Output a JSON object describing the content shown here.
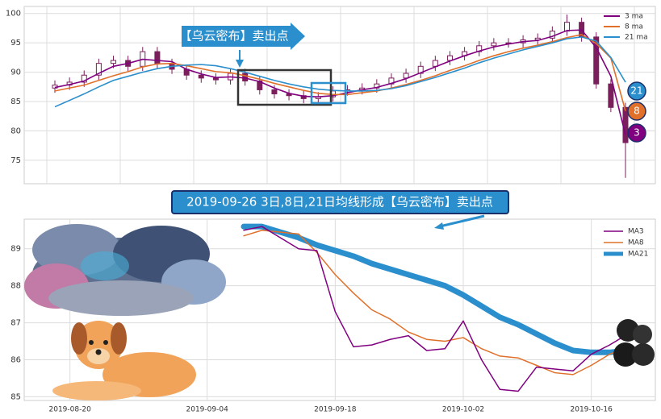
{
  "chart_data": [
    {
      "type": "candlestick",
      "annotation": "【乌云密布】卖出点",
      "candle_color": "#7a1f5c",
      "ylim": [
        71,
        101.2
      ],
      "yticks": [
        75,
        80,
        85,
        90,
        95,
        100
      ],
      "grid": true,
      "open": [
        87.3,
        87.8,
        88.3,
        89.5,
        91.5,
        92,
        91,
        93.5,
        91.5,
        90.5,
        89.5,
        89,
        88.7,
        89.8,
        88.5,
        87,
        86.3,
        86,
        85.5,
        85.8,
        86.8,
        87,
        87.3,
        88,
        89,
        89.8,
        91,
        92,
        92.8,
        93.5,
        94.5,
        95,
        95,
        95.5,
        95.8,
        97,
        98.5,
        96,
        88,
        84
      ],
      "high": [
        88.6,
        89.1,
        90.3,
        92.3,
        92.8,
        92.8,
        94.3,
        94.3,
        92.3,
        91.3,
        90.3,
        89.8,
        90.6,
        90.6,
        89.3,
        87.8,
        87.1,
        86.8,
        86.6,
        87.6,
        87.8,
        88.1,
        88.8,
        89.8,
        90.6,
        91.8,
        92.8,
        93.6,
        94.3,
        95.3,
        95.8,
        95.8,
        96.3,
        96.6,
        97.8,
        99.8,
        99.3,
        96.8,
        88.8,
        84.8
      ],
      "low": [
        86.5,
        87.0,
        87.5,
        88.7,
        90.7,
        90.2,
        90.2,
        90.7,
        89.7,
        88.7,
        88.2,
        87.9,
        87.9,
        87.7,
        86.2,
        85.5,
        85.2,
        84.7,
        84.7,
        85.0,
        86.0,
        86.2,
        86.5,
        87.2,
        88.2,
        89.0,
        90.2,
        91.2,
        92.0,
        92.7,
        93.7,
        94.2,
        94.2,
        94.7,
        95.0,
        96.2,
        95.2,
        87.2,
        83.2,
        72.0
      ],
      "close": [
        87.8,
        88.3,
        89.5,
        91.5,
        92,
        91,
        93.5,
        91.5,
        90.5,
        89.5,
        89,
        88.7,
        89.8,
        88.5,
        87,
        86.3,
        86,
        85.5,
        85.8,
        86.8,
        87,
        87.3,
        88,
        89,
        89.8,
        91,
        92,
        92.8,
        93.5,
        94.5,
        95,
        95,
        95.5,
        95.8,
        97,
        98.5,
        96,
        88,
        84,
        78
      ],
      "series": [
        {
          "name": "3 ma",
          "color": "#800080",
          "end_label": "3",
          "values": [
            87.4,
            87.9,
            88.5,
            89.8,
            91,
            91.5,
            92.2,
            92,
            91.8,
            90.5,
            89.7,
            89.1,
            89.2,
            89,
            88.4,
            87.3,
            86.4,
            85.9,
            85.8,
            86,
            86.5,
            87,
            87.4,
            88.1,
            88.9,
            89.9,
            90.9,
            91.9,
            92.8,
            93.6,
            94.3,
            94.8,
            95.2,
            95.4,
            96.1,
            97.1,
            97.2,
            94.2,
            89.3,
            79.3
          ]
        },
        {
          "name": "8 ma",
          "color": "#e0702a",
          "end_label": "8",
          "values": [
            86.8,
            87.3,
            87.8,
            88.6,
            89.4,
            90.1,
            90.9,
            91.4,
            91.5,
            91.1,
            90.6,
            90.1,
            89.9,
            89.4,
            88.8,
            88.1,
            87.5,
            86.9,
            86.4,
            86.2,
            86.2,
            86.5,
            86.8,
            87.3,
            87.9,
            88.6,
            89.4,
            90.3,
            91.1,
            92,
            92.8,
            93.5,
            94.1,
            94.6,
            95.2,
            95.9,
            96.4,
            94.9,
            92.4,
            83.4
          ]
        },
        {
          "name": "21 ma",
          "color": "#2a8fcc",
          "end_label": "21",
          "values": [
            84.1,
            85.2,
            86.3,
            87.5,
            88.6,
            89.3,
            90,
            90.6,
            91,
            91.2,
            91.3,
            91.1,
            90.6,
            90,
            89.3,
            88.6,
            88,
            87.5,
            87.1,
            86.9,
            86.8,
            86.8,
            86.9,
            87.2,
            87.7,
            88.4,
            89.1,
            89.9,
            90.7,
            91.6,
            92.4,
            93.1,
            93.8,
            94.4,
            95,
            95.7,
            96,
            95.3,
            92.5,
            88.3
          ]
        }
      ]
    },
    {
      "type": "line",
      "title": "2019-09-26 3日,8日,21日均线形成【乌云密布】卖出点",
      "x": [
        "2019-09-08",
        "2019-09-10",
        "2019-09-12",
        "2019-09-14",
        "2019-09-16",
        "2019-09-18",
        "2019-09-20",
        "2019-09-22",
        "2019-09-24",
        "2019-09-26",
        "2019-09-28",
        "2019-09-30",
        "2019-10-02",
        "2019-10-04",
        "2019-10-06",
        "2019-10-08",
        "2019-10-10",
        "2019-10-12",
        "2019-10-14",
        "2019-10-16",
        "2019-10-18",
        "2019-10-20"
      ],
      "xlim": [
        "2019-08-15",
        "2019-10-23"
      ],
      "xticks": [
        "2019-08-20",
        "2019-09-04",
        "2019-09-18",
        "2019-10-02",
        "2019-10-16"
      ],
      "ylim": [
        84.9,
        89.8
      ],
      "yticks": [
        85,
        86,
        87,
        88,
        89
      ],
      "grid": true,
      "series": [
        {
          "name": "MA3",
          "color": "#800080",
          "width": 1.5,
          "values": [
            89.5,
            89.6,
            89.3,
            89.0,
            88.95,
            87.3,
            86.35,
            86.4,
            86.55,
            86.65,
            86.25,
            86.3,
            87.05,
            86.0,
            85.2,
            85.15,
            85.8,
            85.75,
            85.7,
            86.15,
            86.4,
            86.7
          ]
        },
        {
          "name": "MA8",
          "color": "#e0702a",
          "width": 1.5,
          "values": [
            89.35,
            89.5,
            89.45,
            89.4,
            88.9,
            88.3,
            87.8,
            87.35,
            87.1,
            86.75,
            86.55,
            86.5,
            86.6,
            86.3,
            86.1,
            86.05,
            85.85,
            85.65,
            85.6,
            85.85,
            86.15,
            86.35
          ]
        },
        {
          "name": "MA21",
          "color": "#2a8fcc",
          "width": 7,
          "values": [
            89.6,
            89.6,
            89.45,
            89.3,
            89.1,
            88.95,
            88.8,
            88.6,
            88.45,
            88.3,
            88.15,
            88.0,
            87.75,
            87.45,
            87.15,
            86.95,
            86.7,
            86.45,
            86.25,
            86.2,
            86.2,
            86.25
          ]
        }
      ]
    }
  ]
}
